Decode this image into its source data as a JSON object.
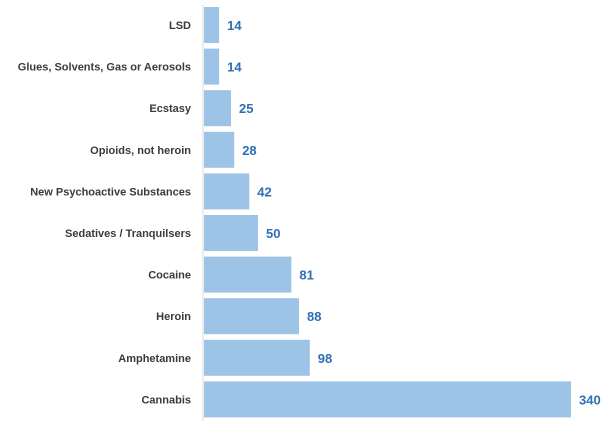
{
  "chart_data": {
    "type": "bar",
    "orientation": "horizontal",
    "categories": [
      "LSD",
      "Glues, Solvents, Gas or Aerosols",
      "Ecstasy",
      "Opioids, not heroin",
      "New Psychoactive Substances",
      "Sedatives / Tranquilsers",
      "Cocaine",
      "Heroin",
      "Amphetamine",
      "Cannabis"
    ],
    "values": [
      14,
      14,
      25,
      28,
      42,
      50,
      81,
      88,
      98,
      340
    ],
    "data_labels": [
      "14",
      "14",
      "25",
      "28",
      "42",
      "50",
      "81",
      "88",
      "98",
      "340"
    ],
    "title": "",
    "xlabel": "",
    "ylabel": "",
    "xlim": [
      0,
      340
    ],
    "grid": false,
    "legend": "none",
    "colors": {
      "bar": "#9dc3e6",
      "data_label": "#2f6fb5",
      "category_label": "#3a3a3a",
      "axis": "#d9d9d9"
    }
  }
}
